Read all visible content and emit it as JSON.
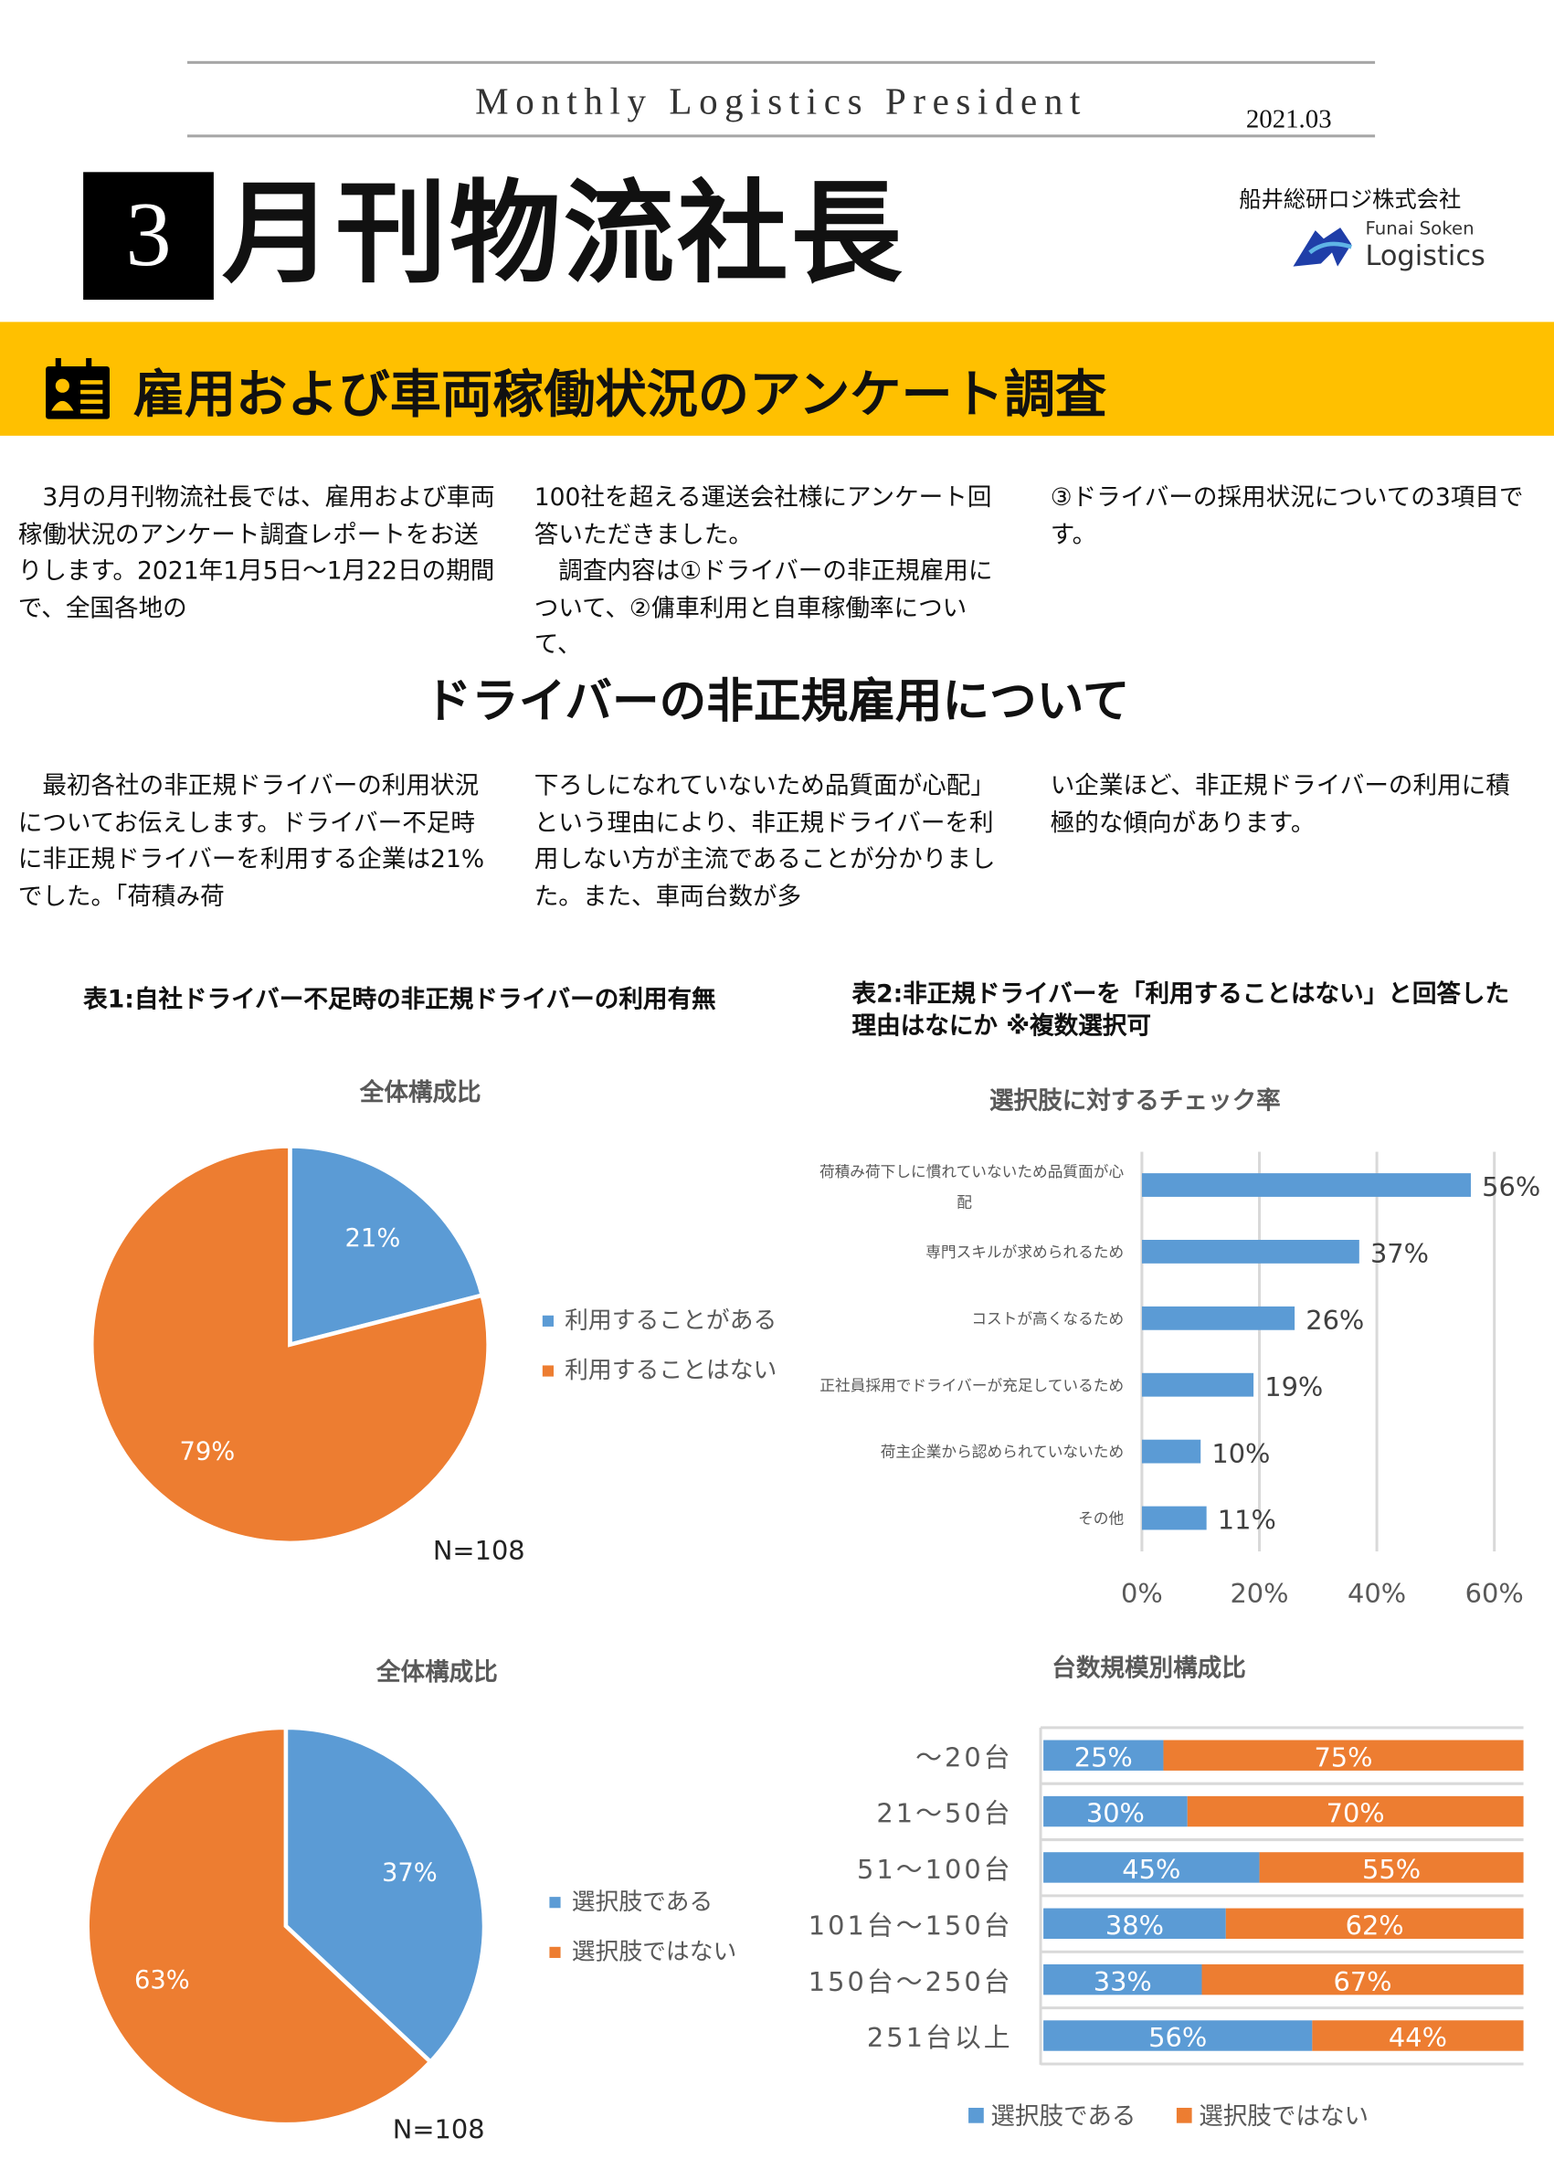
{
  "header": {
    "masthead": "Monthly Logistics President",
    "date": "2021.03",
    "issue_number": "3",
    "title": "月刊物流社長",
    "company": "船井総研ロジ株式会社",
    "logo_text": [
      "Funai Soken",
      "Logistics"
    ]
  },
  "banner": {
    "icon": "id-badge-icon",
    "title": "雇用および車両稼働状況のアンケート調査"
  },
  "intro": {
    "columns": [
      "　3月の月刊物流社長では、雇用および車両稼働状況のアンケート調査レポートをお送りします。2021年1月5日〜1月22日の期間で、全国各地の",
      "100社を超える運送会社様にアンケート回答いただきました。\n　調査内容は①ドライバーの非正規雇用について、②傭車利用と自車稼働率について、",
      "③ドライバーの採用状況についての3項目です。"
    ]
  },
  "section": {
    "title": "ドライバーの非正規雇用について",
    "columns": [
      "　最初各社の非正規ドライバーの利用状況についてお伝えします。ドライバー不足時に非正規ドライバーを利用する企業は21%でした。「荷積み荷",
      "下ろしになれていないため品質面が心配」という理由により、非正規ドライバーを利用しない方が主流であることが分かりました。また、車両台数が多",
      "い企業ほど、非正規ドライバーの利用に積極的な傾向があります。"
    ]
  },
  "table1": {
    "caption": "表1:自社ドライバー不足時の非正規ドライバーの利用有無"
  },
  "table2": {
    "caption": "表2:非正規ドライバーを「利用することはない」と回答した理由はなにか ※複数選択可"
  },
  "colors": {
    "blue": "#5b9bd5",
    "orange": "#ed7d31",
    "banner": "#ffc000"
  },
  "chart_data": [
    {
      "type": "pie",
      "title": "全体構成比",
      "categories": [
        "利用することがある",
        "利用することはない"
      ],
      "values": [
        21,
        79
      ],
      "labels": [
        "21%",
        "79%"
      ],
      "note": "N=108",
      "legend": "right"
    },
    {
      "type": "bar",
      "orientation": "horizontal",
      "title": "選択肢に対するチェック率",
      "categories": [
        "荷積み荷下しに慣れていないため品質面が心配",
        "専門スキルが求められるため",
        "コストが高くなるため",
        "正社員採用でドライバーが充足しているため",
        "荷主企業から認められていないため",
        "その他"
      ],
      "values": [
        56,
        37,
        26,
        19,
        10,
        11
      ],
      "labels": [
        "56%",
        "37%",
        "26%",
        "19%",
        "10%",
        "11%"
      ],
      "xlim": [
        0,
        60
      ],
      "ticks": [
        "0%",
        "20%",
        "40%",
        "60%"
      ],
      "grid": true
    },
    {
      "type": "pie",
      "title": "全体構成比",
      "categories": [
        "選択肢である",
        "選択肢ではない"
      ],
      "values": [
        37,
        63
      ],
      "labels": [
        "37%",
        "63%"
      ],
      "note": "N=108",
      "legend": "right"
    },
    {
      "type": "bar",
      "stacked": true,
      "orientation": "horizontal",
      "title": "台数規模別構成比",
      "categories": [
        "〜20台",
        "21〜50台",
        "51〜100台",
        "101台〜150台",
        "150台〜250台",
        "251台以上"
      ],
      "series": [
        {
          "name": "選択肢である",
          "values": [
            25,
            30,
            45,
            38,
            33,
            56
          ]
        },
        {
          "name": "選択肢ではない",
          "values": [
            75,
            70,
            55,
            62,
            67,
            44
          ]
        }
      ],
      "legend": "bottom"
    }
  ]
}
